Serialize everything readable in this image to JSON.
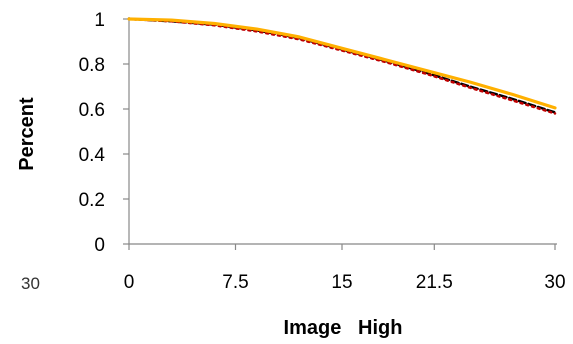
{
  "chart_data": {
    "type": "line",
    "xlabel": "Image   High",
    "ylabel": "Percent",
    "corner_label": "30",
    "xlim": [
      0,
      30
    ],
    "ylim": [
      0,
      1
    ],
    "x_ticks": [
      "0",
      "7.5",
      "15",
      "21.5",
      "30"
    ],
    "y_ticks": [
      "0",
      "0.2",
      "0.4",
      "0.6",
      "0.8",
      "1"
    ],
    "grid": false,
    "legend": "none",
    "series": [
      {
        "color": "#000000",
        "style": "dashed",
        "x": [
          0,
          3,
          6,
          9,
          12,
          15,
          18,
          21,
          24,
          27,
          30
        ],
        "y": [
          1.0,
          0.99,
          0.975,
          0.95,
          0.915,
          0.865,
          0.815,
          0.76,
          0.7,
          0.645,
          0.585
        ]
      },
      {
        "color": "#c00000",
        "style": "dotted",
        "x": [
          0,
          3,
          6,
          9,
          12,
          15,
          18,
          21,
          24,
          27,
          30
        ],
        "y": [
          1.0,
          0.99,
          0.972,
          0.945,
          0.91,
          0.86,
          0.81,
          0.755,
          0.695,
          0.638,
          0.58
        ]
      },
      {
        "color": "#ffb000",
        "style": "solid",
        "x": [
          0,
          3,
          6,
          9,
          12,
          15,
          18,
          21,
          24,
          27,
          30
        ],
        "y": [
          1.0,
          0.995,
          0.98,
          0.955,
          0.92,
          0.87,
          0.82,
          0.77,
          0.72,
          0.665,
          0.605
        ]
      }
    ]
  }
}
